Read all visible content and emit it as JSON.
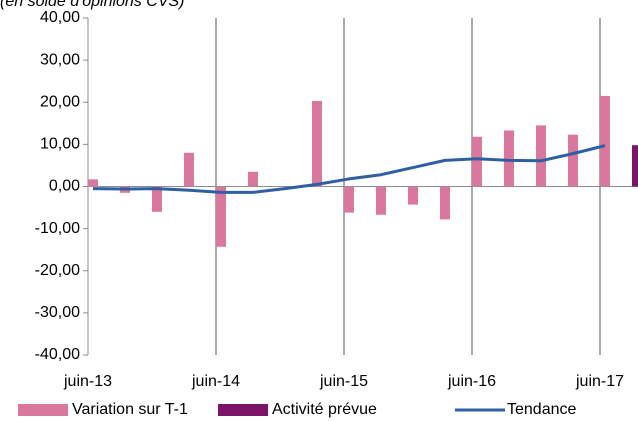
{
  "chart_data": {
    "type": "bar",
    "subtitle": "(en solde d'opinions CVS)",
    "categories": [
      "juin-13",
      null,
      null,
      null,
      "juin-14",
      null,
      null,
      null,
      "juin-15",
      null,
      null,
      null,
      "juin-16",
      null,
      null,
      null,
      "juin-17",
      null
    ],
    "series": [
      {
        "name": "Variation sur T-1",
        "type": "bar",
        "color": "#d9779e",
        "values": [
          1.7,
          -1.5,
          -6,
          8,
          -14.3,
          3.5,
          null,
          20.3,
          -6.2,
          -6.7,
          -4.3,
          -7.8,
          11.8,
          13.3,
          14.5,
          12.3,
          21.5,
          null
        ]
      },
      {
        "name": "Activité prévue",
        "type": "bar",
        "color": "#7b1468",
        "values": [
          null,
          null,
          null,
          null,
          null,
          null,
          null,
          null,
          null,
          null,
          null,
          null,
          null,
          null,
          null,
          null,
          null,
          9.8
        ]
      },
      {
        "name": "Tendance",
        "type": "line",
        "color": "#2e5fa3",
        "values": [
          -0.5,
          -0.6,
          -0.5,
          -0.9,
          -1.4,
          -1.4,
          -0.5,
          0.5,
          1.8,
          2.8,
          4.5,
          6.2,
          6.6,
          6.2,
          6.1,
          7.8,
          9.7,
          null
        ]
      }
    ],
    "ylim": [
      -40,
      40
    ],
    "yticks": [
      {
        "value": -40,
        "label": "-40,00"
      },
      {
        "value": -30,
        "label": "-30,00"
      },
      {
        "value": -20,
        "label": "-20,00"
      },
      {
        "value": -10,
        "label": "-10,00"
      },
      {
        "value": 0,
        "label": "0,00"
      },
      {
        "value": 10,
        "label": "10,00"
      },
      {
        "value": 20,
        "label": "20,00"
      },
      {
        "value": 30,
        "label": "30,00"
      },
      {
        "value": 40,
        "label": "40,00"
      }
    ],
    "grid": true,
    "legend": "bottom"
  }
}
